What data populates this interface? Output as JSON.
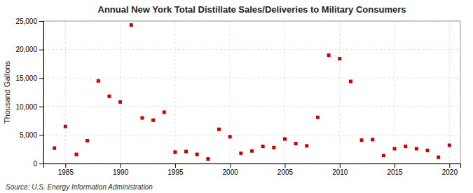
{
  "chart_data": {
    "type": "scatter",
    "title": "Annual New York Total Distillate Sales/Deliveries to Military Consumers",
    "ylabel": "Thousand Gallons",
    "source": "Source: U.S. Energy Information Administration",
    "x": [
      1984,
      1985,
      1986,
      1987,
      1988,
      1989,
      1990,
      1991,
      1992,
      1993,
      1994,
      1995,
      1996,
      1997,
      1998,
      1999,
      2000,
      2001,
      2002,
      2003,
      2004,
      2005,
      2006,
      2007,
      2008,
      2009,
      2010,
      2011,
      2012,
      2013,
      2014,
      2015,
      2016,
      2017,
      2018,
      2019,
      2020
    ],
    "values": [
      2700,
      6500,
      1600,
      4000,
      14500,
      11800,
      10800,
      24300,
      8000,
      7600,
      9000,
      2000,
      2100,
      1600,
      800,
      6000,
      4700,
      1800,
      2200,
      3000,
      2800,
      4300,
      3500,
      3100,
      8100,
      19000,
      18400,
      14400,
      4100,
      4200,
      1400,
      2600,
      3000,
      2600,
      2300,
      1100,
      3200
    ],
    "color": "#cc0000",
    "marker": "square",
    "xlim": [
      1983,
      2021
    ],
    "xticks": [
      1985,
      1990,
      1995,
      2000,
      2005,
      2010,
      2015,
      2020
    ],
    "ylim": [
      0,
      25000
    ],
    "yticks": [
      0,
      {
        "value": 5000,
        "label": "5,000"
      },
      {
        "value": 10000,
        "label": "10,000"
      },
      {
        "value": 15000,
        "label": "15,000"
      },
      {
        "value": 20000,
        "label": "20,000"
      },
      {
        "value": 25000,
        "label": "25,000"
      }
    ],
    "grid": true
  }
}
